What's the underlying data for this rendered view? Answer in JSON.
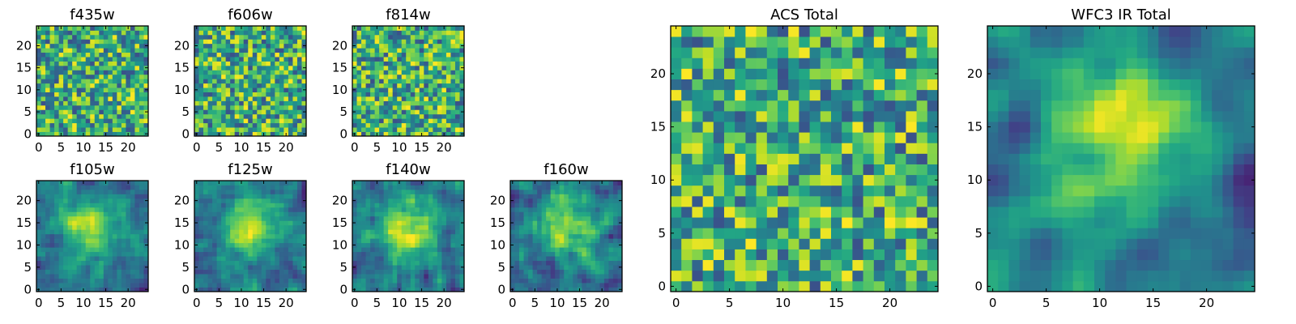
{
  "chart_data": [
    {
      "id": "f435w",
      "type": "heatmap",
      "title": "f435w",
      "grid_size": 25,
      "xlim": [
        0,
        24
      ],
      "ylim": [
        0,
        24
      ],
      "xticks": [
        0,
        5,
        10,
        15,
        20
      ],
      "yticks": [
        0,
        5,
        10,
        15,
        20
      ],
      "colormap": "viridis",
      "smooth": 0,
      "structure": "noise",
      "seed": 11
    },
    {
      "id": "f606w",
      "type": "heatmap",
      "title": "f606w",
      "grid_size": 25,
      "xlim": [
        0,
        24
      ],
      "ylim": [
        0,
        24
      ],
      "xticks": [
        0,
        5,
        10,
        15,
        20
      ],
      "yticks": [
        0,
        5,
        10,
        15,
        20
      ],
      "colormap": "viridis",
      "smooth": 0,
      "structure": "noise",
      "seed": 23
    },
    {
      "id": "f814w",
      "type": "heatmap",
      "title": "f814w",
      "grid_size": 25,
      "xlim": [
        0,
        24
      ],
      "ylim": [
        0,
        24
      ],
      "xticks": [
        0,
        5,
        10,
        15,
        20
      ],
      "yticks": [
        0,
        5,
        10,
        15,
        20
      ],
      "colormap": "viridis",
      "smooth": 0,
      "structure": "noise",
      "seed": 37
    },
    {
      "id": "f105w",
      "type": "heatmap",
      "title": "f105w",
      "grid_size": 25,
      "xlim": [
        0,
        24
      ],
      "ylim": [
        0,
        24
      ],
      "xticks": [
        0,
        5,
        10,
        15,
        20
      ],
      "yticks": [
        0,
        5,
        10,
        15,
        20
      ],
      "colormap": "viridis",
      "smooth": 1,
      "structure": "blob",
      "seed": 41
    },
    {
      "id": "f125w",
      "type": "heatmap",
      "title": "f125w",
      "grid_size": 25,
      "xlim": [
        0,
        24
      ],
      "ylim": [
        0,
        24
      ],
      "xticks": [
        0,
        5,
        10,
        15,
        20
      ],
      "yticks": [
        0,
        5,
        10,
        15,
        20
      ],
      "colormap": "viridis",
      "smooth": 1,
      "structure": "blob",
      "seed": 53
    },
    {
      "id": "f140w",
      "type": "heatmap",
      "title": "f140w",
      "grid_size": 25,
      "xlim": [
        0,
        24
      ],
      "ylim": [
        0,
        24
      ],
      "xticks": [
        0,
        5,
        10,
        15,
        20
      ],
      "yticks": [
        0,
        5,
        10,
        15,
        20
      ],
      "colormap": "viridis",
      "smooth": 1,
      "structure": "blob",
      "seed": 67
    },
    {
      "id": "f160w",
      "type": "heatmap",
      "title": "f160w",
      "grid_size": 25,
      "xlim": [
        0,
        24
      ],
      "ylim": [
        0,
        24
      ],
      "xticks": [
        0,
        5,
        10,
        15,
        20
      ],
      "yticks": [
        0,
        5,
        10,
        15,
        20
      ],
      "colormap": "viridis",
      "smooth": 1,
      "structure": "blob",
      "seed": 79
    },
    {
      "id": "acs_total",
      "type": "heatmap",
      "title": "ACS Total",
      "grid_size": 25,
      "xlim": [
        0,
        24
      ],
      "ylim": [
        0,
        24
      ],
      "xticks": [
        0,
        5,
        10,
        15,
        20
      ],
      "yticks": [
        0,
        5,
        10,
        15,
        20
      ],
      "colormap": "viridis",
      "smooth": 0,
      "structure": "noise",
      "seed": 97
    },
    {
      "id": "wfc3_ir_total",
      "type": "heatmap",
      "title": "WFC3 IR Total",
      "grid_size": 25,
      "xlim": [
        0,
        24
      ],
      "ylim": [
        0,
        24
      ],
      "xticks": [
        0,
        5,
        10,
        15,
        20
      ],
      "yticks": [
        0,
        5,
        10,
        15,
        20
      ],
      "colormap": "viridis",
      "smooth": 2,
      "structure": "blob",
      "seed": 113
    }
  ]
}
